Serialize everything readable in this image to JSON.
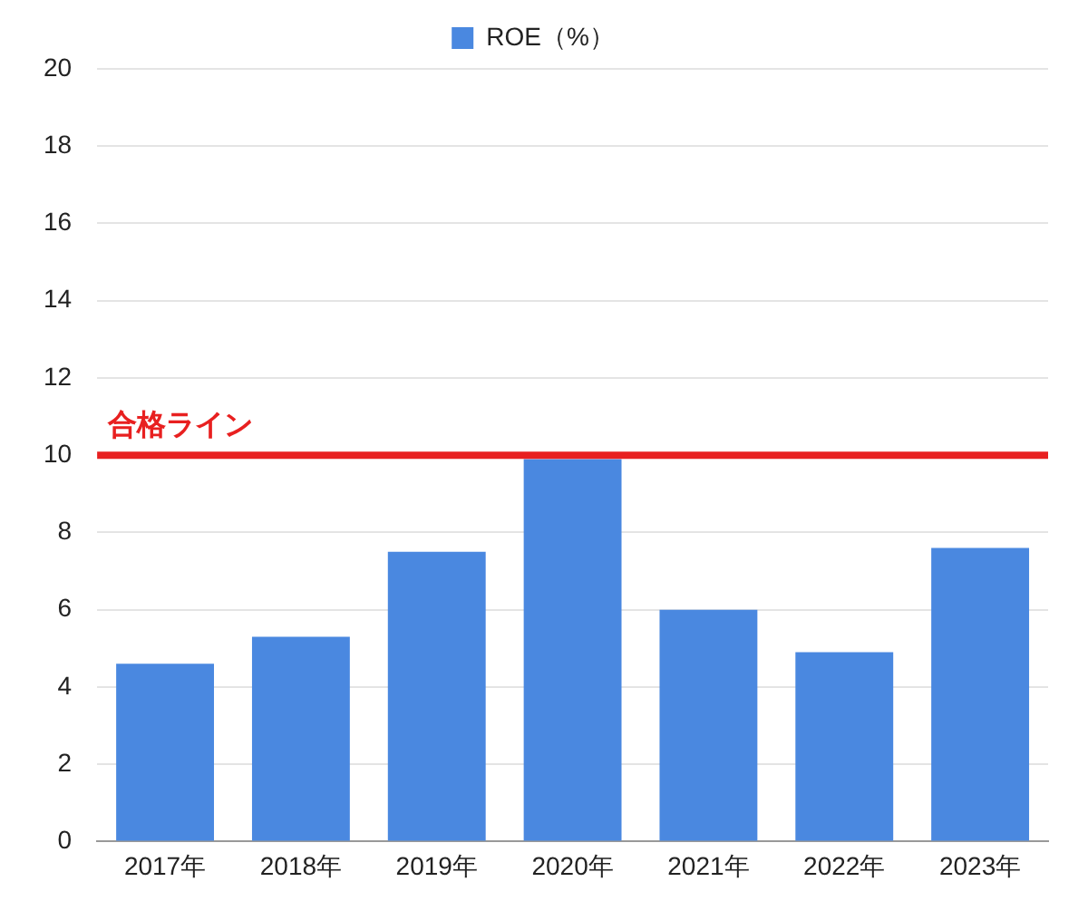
{
  "chart_data": {
    "type": "bar",
    "categories": [
      "2017年",
      "2018年",
      "2019年",
      "2020年",
      "2021年",
      "2022年",
      "2023年"
    ],
    "series": [
      {
        "name": "ROE（%）",
        "color": "#4a88e0",
        "values": [
          4.6,
          5.3,
          7.5,
          9.9,
          6.0,
          4.9,
          7.6
        ]
      }
    ],
    "ylim": [
      0,
      20
    ],
    "yticks": [
      0,
      2,
      4,
      6,
      8,
      10,
      12,
      14,
      16,
      18,
      20
    ],
    "grid": "y",
    "legend": "top",
    "ref_lines": [
      {
        "axis": "y",
        "value": 10,
        "label": "合格ライン",
        "color": "#e82020"
      }
    ]
  }
}
